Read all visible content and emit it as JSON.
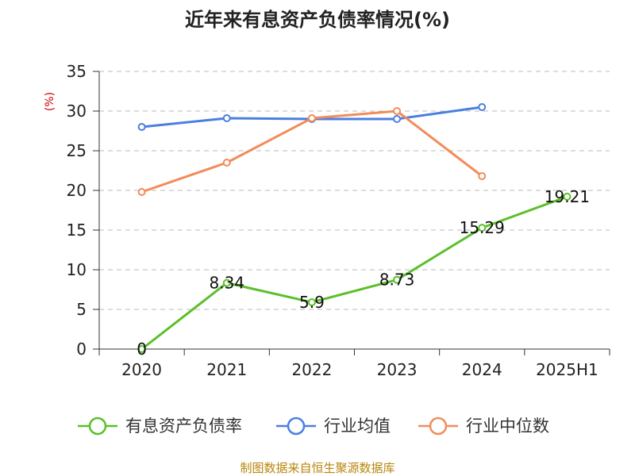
{
  "colors": {
    "series_0": "#5bbf2a",
    "series_1": "#4a7fe0",
    "series_2": "#f28c5a",
    "axis": "#333333",
    "grid": "#bbbbbb",
    "unit_label": "#cc0000",
    "source": "#b8860b"
  },
  "chart_data": {
    "type": "line",
    "title": "近年来有息资产负债率情况(%)",
    "ylabel": "(%)",
    "xlabel": "",
    "categories": [
      "2020",
      "2021",
      "2022",
      "2023",
      "2024",
      "2025H1"
    ],
    "ylim": [
      0,
      35
    ],
    "yticks": [
      0,
      5,
      10,
      15,
      20,
      25,
      30,
      35
    ],
    "grid": true,
    "legend_position": "bottom",
    "series": [
      {
        "name": "有息资产负债率",
        "values": [
          0,
          8.34,
          5.9,
          8.73,
          15.29,
          19.21
        ],
        "data_labels": [
          "0",
          "8.34",
          "5.9",
          "8.73",
          "15.29",
          "19.21"
        ]
      },
      {
        "name": "行业均值",
        "values": [
          28,
          29.1,
          29,
          29,
          30.5,
          null
        ]
      },
      {
        "name": "行业中位数",
        "values": [
          19.8,
          23.5,
          29.1,
          30,
          21.8,
          null
        ]
      }
    ]
  },
  "source": "制图数据来自恒生聚源数据库"
}
